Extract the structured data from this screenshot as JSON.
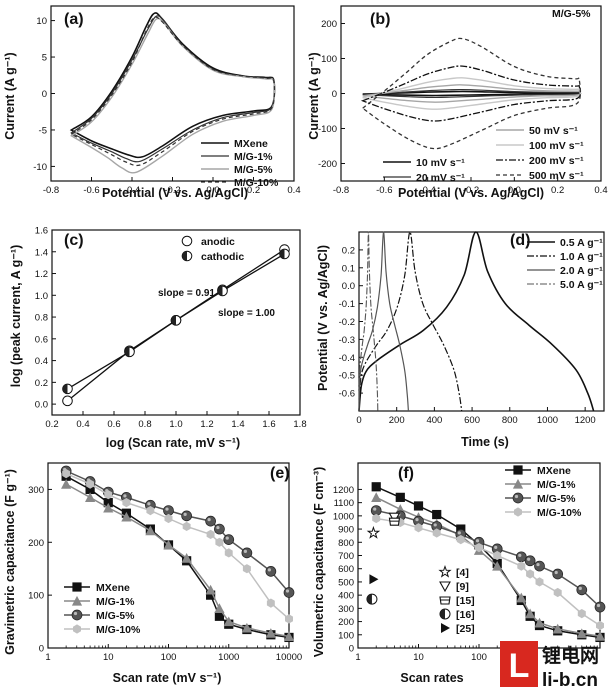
{
  "colors": {
    "black": "#111111",
    "dark": "#333333",
    "mid": "#707070",
    "light": "#a6a6a6",
    "lighter": "#c8c8c8",
    "watermark_red": "#d8281f"
  },
  "chart_data": [
    {
      "panel": "a",
      "label": "(a)",
      "type": "line",
      "xlabel": "Potential (V vs. Ag/AgCl)",
      "ylabel": "Current (A g⁻¹)",
      "xlim": [
        -0.8,
        0.4
      ],
      "ylim": [
        -12,
        12
      ],
      "xticks": [
        "-0.8",
        "-0.6",
        "-0.4",
        "-0.2",
        "0.0",
        "0.2",
        "0.4"
      ],
      "yticks": [
        "-10",
        "-5",
        "0",
        "5",
        "10"
      ],
      "legend_position": "bottom-right",
      "series": [
        {
          "name": "MXene",
          "color": "#111111",
          "dash": "",
          "width": 1.6,
          "upper": [
            [
              -0.7,
              -5.0
            ],
            [
              -0.6,
              -3.2
            ],
            [
              -0.5,
              0.3
            ],
            [
              -0.4,
              5.0
            ],
            [
              -0.33,
              9.2
            ],
            [
              -0.29,
              11.0
            ],
            [
              -0.25,
              10.2
            ],
            [
              -0.15,
              6.8
            ],
            [
              0.0,
              3.5
            ],
            [
              0.15,
              2.4
            ],
            [
              0.26,
              2.2
            ],
            [
              0.3,
              1.8
            ]
          ],
          "lower": [
            [
              0.3,
              1.8
            ],
            [
              0.29,
              -1.8
            ],
            [
              0.2,
              -2.4
            ],
            [
              0.05,
              -3.0
            ],
            [
              -0.1,
              -4.5
            ],
            [
              -0.25,
              -7.2
            ],
            [
              -0.35,
              -8.7
            ],
            [
              -0.42,
              -8.4
            ],
            [
              -0.5,
              -7.6
            ],
            [
              -0.6,
              -6.5
            ],
            [
              -0.7,
              -5.0
            ]
          ]
        },
        {
          "name": "M/G-1%",
          "color": "#333333",
          "dash": "",
          "width": 1.2,
          "upper": [
            [
              -0.7,
              -5.4
            ],
            [
              -0.6,
              -3.4
            ],
            [
              -0.5,
              0.0
            ],
            [
              -0.4,
              4.6
            ],
            [
              -0.32,
              8.9
            ],
            [
              -0.28,
              10.6
            ],
            [
              -0.24,
              9.9
            ],
            [
              -0.15,
              6.6
            ],
            [
              0.0,
              3.3
            ],
            [
              0.15,
              2.3
            ],
            [
              0.26,
              2.1
            ],
            [
              0.3,
              1.7
            ]
          ],
          "lower": [
            [
              0.3,
              1.7
            ],
            [
              0.29,
              -1.9
            ],
            [
              0.2,
              -2.6
            ],
            [
              0.05,
              -3.3
            ],
            [
              -0.1,
              -5.0
            ],
            [
              -0.25,
              -7.6
            ],
            [
              -0.36,
              -9.3
            ],
            [
              -0.43,
              -8.9
            ],
            [
              -0.5,
              -8.0
            ],
            [
              -0.6,
              -6.8
            ],
            [
              -0.7,
              -5.4
            ]
          ]
        },
        {
          "name": "M/G-5%",
          "color": "#a6a6a6",
          "dash": "",
          "width": 1.4,
          "upper": [
            [
              -0.7,
              -5.8
            ],
            [
              -0.6,
              -3.9
            ],
            [
              -0.5,
              -0.5
            ],
            [
              -0.4,
              4.0
            ],
            [
              -0.32,
              8.3
            ],
            [
              -0.28,
              10.2
            ],
            [
              -0.24,
              9.6
            ],
            [
              -0.15,
              6.5
            ],
            [
              0.0,
              3.2
            ],
            [
              0.15,
              2.3
            ],
            [
              0.26,
              2.0
            ],
            [
              0.3,
              1.6
            ]
          ],
          "lower": [
            [
              0.3,
              1.6
            ],
            [
              0.29,
              -2.2
            ],
            [
              0.2,
              -3.0
            ],
            [
              0.05,
              -3.8
            ],
            [
              -0.1,
              -5.6
            ],
            [
              -0.25,
              -8.6
            ],
            [
              -0.38,
              -10.8
            ],
            [
              -0.45,
              -10.2
            ],
            [
              -0.52,
              -8.8
            ],
            [
              -0.6,
              -7.4
            ],
            [
              -0.7,
              -5.8
            ]
          ]
        },
        {
          "name": "M/G-10%",
          "color": "#333333",
          "dash": "4,3",
          "width": 1.2,
          "upper": [
            [
              -0.7,
              -5.6
            ],
            [
              -0.6,
              -3.6
            ],
            [
              -0.5,
              -0.2
            ],
            [
              -0.4,
              4.3
            ],
            [
              -0.33,
              8.6
            ],
            [
              -0.29,
              10.4
            ],
            [
              -0.25,
              9.8
            ],
            [
              -0.15,
              6.6
            ],
            [
              0.0,
              3.3
            ],
            [
              0.15,
              2.4
            ],
            [
              0.26,
              2.1
            ],
            [
              0.3,
              1.7
            ]
          ],
          "lower": [
            [
              0.3,
              1.7
            ],
            [
              0.29,
              -2.0
            ],
            [
              0.2,
              -2.8
            ],
            [
              0.05,
              -3.5
            ],
            [
              -0.1,
              -5.2
            ],
            [
              -0.25,
              -8.0
            ],
            [
              -0.36,
              -9.8
            ],
            [
              -0.43,
              -9.4
            ],
            [
              -0.5,
              -8.4
            ],
            [
              -0.6,
              -7.0
            ],
            [
              -0.7,
              -5.6
            ]
          ]
        }
      ]
    },
    {
      "panel": "b",
      "label": "(b)",
      "type": "line",
      "title": "M/G-5%",
      "xlabel": "Potential (V vs. Ag/AgCl)",
      "ylabel": "Current (A g⁻¹)",
      "xlim": [
        -0.8,
        0.4
      ],
      "ylim": [
        -250,
        250
      ],
      "xticks": [
        "-0.8",
        "-0.6",
        "-0.4",
        "-0.2",
        "0.0",
        "0.2",
        "0.4"
      ],
      "yticks": [
        "-200",
        "-100",
        "0",
        "100",
        "200"
      ],
      "series": [
        {
          "name": "10 mV s⁻¹",
          "color": "#111111",
          "dash": "",
          "width": 1.6,
          "scale": 5,
          "lx": 0.0,
          "ly": 0.0
        },
        {
          "name": "20 mV s⁻¹",
          "color": "#333333",
          "dash": "",
          "width": 1.2,
          "scale": 10,
          "lx": 0.0,
          "ly": 0.0
        },
        {
          "name": "50 mV s⁻¹",
          "color": "#a6a6a6",
          "dash": "",
          "width": 1.4,
          "scale": 22,
          "lx": 0.0,
          "ly": 0.0
        },
        {
          "name": "100 mV s⁻¹",
          "color": "#c8c8c8",
          "dash": "",
          "width": 1.4,
          "scale": 40,
          "lx": 0.0,
          "ly": 0.0
        },
        {
          "name": "200 mV s⁻¹",
          "color": "#111111",
          "dash": "7,2,2,2",
          "width": 1.3,
          "scale": 70,
          "lx": 0.0,
          "ly": 0.0
        },
        {
          "name": "500 mV s⁻¹",
          "color": "#333333",
          "dash": "4,3",
          "width": 1.3,
          "scale": 140,
          "lx": 0.0,
          "ly": 0.0
        }
      ]
    },
    {
      "panel": "c",
      "label": "(c)",
      "type": "scatter",
      "xlabel": "log (Scan rate, mV s⁻¹)",
      "ylabel": "log (peak current, A g⁻¹)",
      "xlim": [
        0.2,
        1.8
      ],
      "ylim": [
        -0.1,
        1.6
      ],
      "xticks": [
        "0.2",
        "0.4",
        "0.6",
        "0.8",
        "1.0",
        "1.2",
        "1.4",
        "1.6",
        "1.8"
      ],
      "yticks": [
        "0.0",
        "0.2",
        "0.4",
        "0.6",
        "0.8",
        "1.0",
        "1.2",
        "1.4",
        "1.6"
      ],
      "annotations": [
        "slope = 0.91",
        "slope = 1.00"
      ],
      "series": [
        {
          "name": "anodic",
          "marker": "open-circle",
          "x": [
            0.3,
            0.7,
            1.0,
            1.3,
            1.7
          ],
          "y": [
            0.03,
            0.49,
            0.77,
            1.05,
            1.42
          ]
        },
        {
          "name": "cathodic",
          "marker": "half-circle",
          "x": [
            0.3,
            0.7,
            1.0,
            1.3,
            1.7
          ],
          "y": [
            0.14,
            0.48,
            0.77,
            1.04,
            1.38
          ]
        }
      ]
    },
    {
      "panel": "d",
      "label": "(d)",
      "type": "line",
      "xlabel": "Time (s)",
      "ylabel": "Potential (V vs. Ag/AgCl)",
      "xlim": [
        0,
        1300
      ],
      "ylim": [
        -0.7,
        0.3
      ],
      "xticks": [
        "0",
        "200",
        "400",
        "600",
        "800",
        "1000",
        "1200"
      ],
      "yticks": [
        "-0.6",
        "-0.5",
        "-0.4",
        "-0.3",
        "-0.2",
        "-0.1",
        "0.0",
        "0.1",
        "0.2"
      ],
      "series": [
        {
          "name": "0.5 A g⁻¹",
          "color": "#111111",
          "dash": "",
          "width": 1.6,
          "peak": 620,
          "end": 1245
        },
        {
          "name": "1.0 A g⁻¹",
          "color": "#111111",
          "dash": "7,2,2,2",
          "width": 1.2,
          "peak": 270,
          "end": 545
        },
        {
          "name": "2.0 A g⁻¹",
          "color": "#555555",
          "dash": "",
          "width": 1.2,
          "peak": 130,
          "end": 262
        },
        {
          "name": "5.0 A g⁻¹",
          "color": "#555555",
          "dash": "7,2,2,2",
          "width": 1.1,
          "peak": 50,
          "end": 100
        }
      ]
    },
    {
      "panel": "e",
      "label": "(e)",
      "type": "line",
      "xlabel": "Scan rate (mV s⁻¹)",
      "ylabel": "Gravimetric capacitance (F g⁻¹)",
      "xscale": "log",
      "xlim": [
        1,
        10000
      ],
      "ylim": [
        0,
        350
      ],
      "xticks": [
        "1",
        "10",
        "100",
        "1000",
        "10000"
      ],
      "yticks": [
        "0",
        "100",
        "200",
        "300"
      ],
      "x": [
        2,
        5,
        10,
        20,
        50,
        100,
        200,
        500,
        700,
        1000,
        2000,
        5000,
        10000
      ],
      "series": [
        {
          "name": "MXene",
          "marker": "square",
          "color": "#111111",
          "values": [
            325,
            300,
            275,
            255,
            225,
            195,
            165,
            100,
            60,
            45,
            35,
            25,
            20
          ]
        },
        {
          "name": "M/G-1%",
          "marker": "triangle",
          "color": "#888888",
          "values": [
            310,
            285,
            265,
            248,
            222,
            195,
            170,
            110,
            75,
            50,
            38,
            28,
            22
          ]
        },
        {
          "name": "M/G-5%",
          "marker": "sphere",
          "color": "#555555",
          "values": [
            335,
            315,
            295,
            285,
            270,
            260,
            250,
            240,
            225,
            205,
            180,
            145,
            105
          ]
        },
        {
          "name": "M/G-10%",
          "marker": "hexagon",
          "color": "#c0c0c0",
          "values": [
            330,
            310,
            290,
            275,
            260,
            245,
            230,
            215,
            200,
            180,
            150,
            85,
            55
          ]
        }
      ]
    },
    {
      "panel": "f",
      "label": "(f)",
      "type": "line",
      "xlabel": "Scan rates",
      "ylabel": "Volumetric capacitance (F cm⁻³)",
      "xscale": "log",
      "xlim": [
        1,
        10000
      ],
      "ylim": [
        0,
        1400
      ],
      "xticks": [
        "1",
        "10",
        "100"
      ],
      "yticks": [
        "0",
        "100",
        "200",
        "300",
        "400",
        "500",
        "600",
        "700",
        "800",
        "900",
        "1000",
        "1100",
        "1200"
      ],
      "x": [
        2,
        5,
        10,
        20,
        50,
        100,
        200,
        500,
        700,
        1000,
        2000,
        5000,
        10000
      ],
      "series": [
        {
          "name": "MXene",
          "marker": "square",
          "color": "#111111",
          "values": [
            1220,
            1140,
            1075,
            1010,
            900,
            780,
            640,
            360,
            240,
            170,
            130,
            100,
            80
          ]
        },
        {
          "name": "M/G-1%",
          "marker": "triangle",
          "color": "#888888",
          "values": [
            1140,
            1050,
            990,
            940,
            850,
            740,
            620,
            380,
            260,
            190,
            145,
            110,
            90
          ]
        },
        {
          "name": "M/G-5%",
          "marker": "sphere",
          "color": "#555555",
          "values": [
            1040,
            1000,
            960,
            920,
            860,
            800,
            750,
            690,
            660,
            620,
            560,
            440,
            310
          ]
        },
        {
          "name": "M/G-10%",
          "marker": "hexagon",
          "color": "#c0c0c0",
          "values": [
            980,
            950,
            910,
            870,
            820,
            760,
            700,
            620,
            560,
            500,
            420,
            260,
            170
          ]
        }
      ],
      "references": [
        {
          "label": "[4]",
          "marker": "star",
          "x": 1.8,
          "y": 870
        },
        {
          "label": "[9]",
          "marker": "down-triangle",
          "x": 4,
          "y": 990
        },
        {
          "label": "[15]",
          "marker": "cup",
          "x": 4,
          "y": 960
        },
        {
          "label": "[16]",
          "marker": "half-circle",
          "x": 1.7,
          "y": 370
        },
        {
          "label": "[25]",
          "marker": "right-triangle",
          "x": 1.8,
          "y": 520
        }
      ]
    }
  ],
  "watermark": {
    "logo_letter": "L",
    "brand": "锂电网",
    "domain": "li-b.cn"
  }
}
